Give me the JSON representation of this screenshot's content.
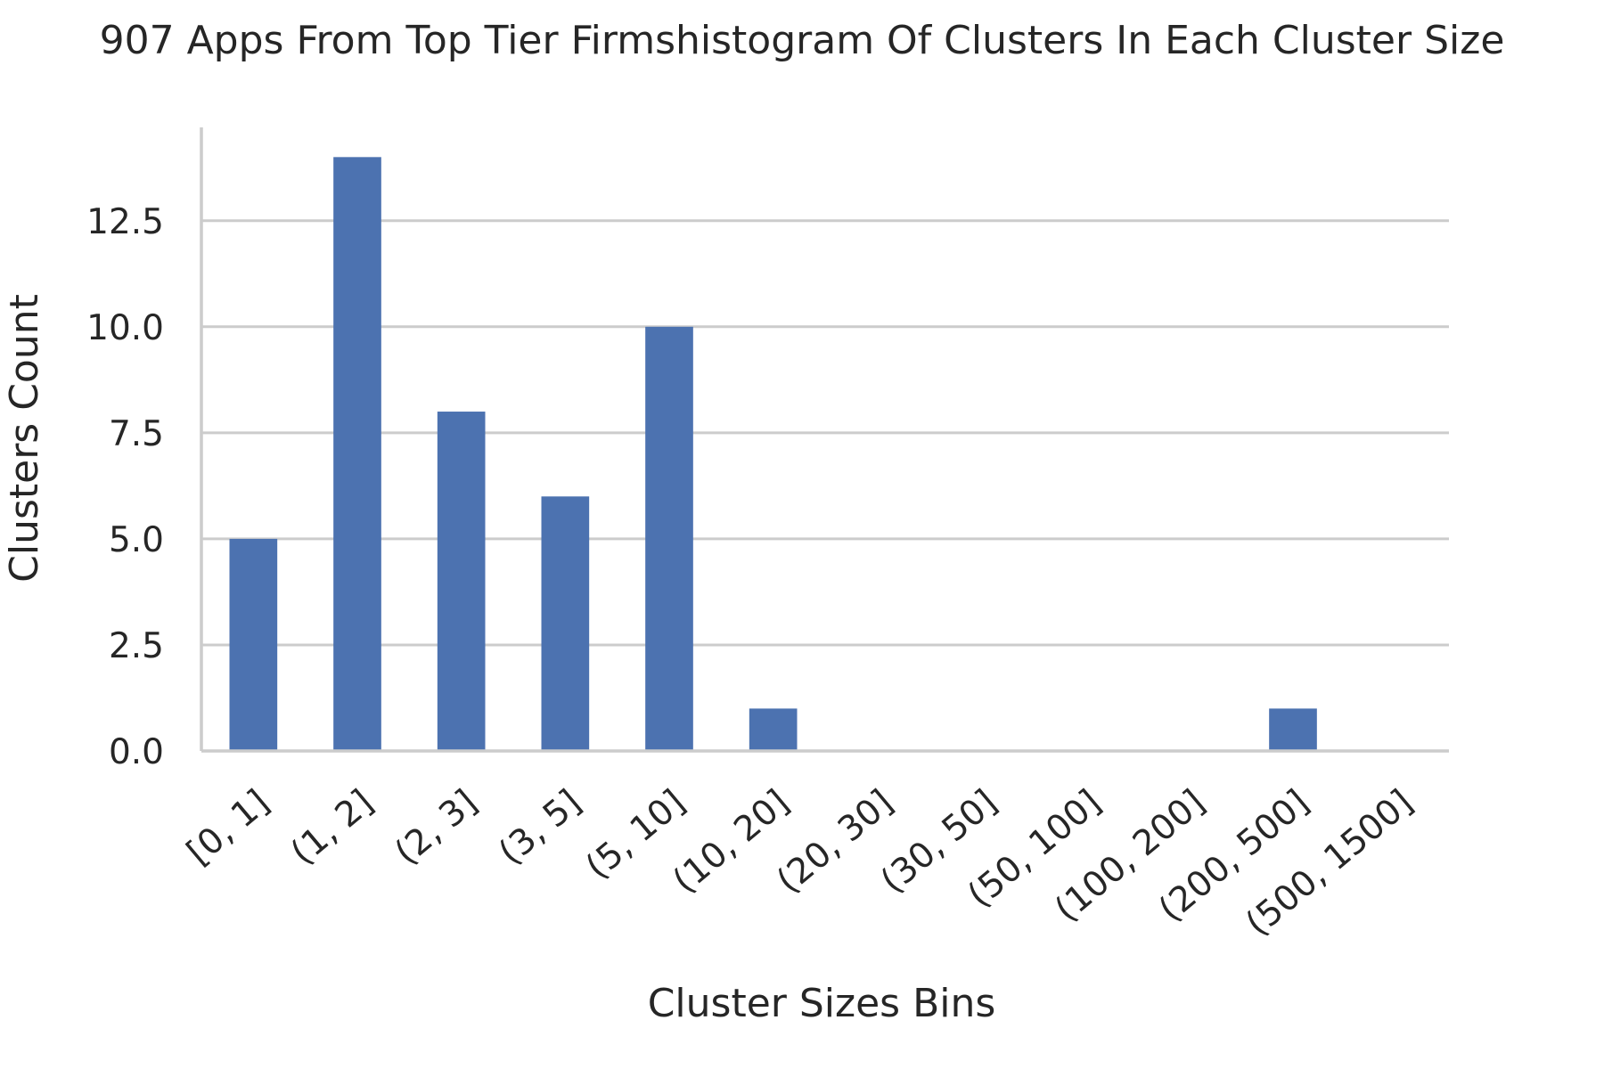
{
  "chart_data": {
    "type": "bar",
    "title": "907 Apps From Top Tier Firmshistogram Of Clusters In Each Cluster Size",
    "xlabel": "Cluster Sizes Bins",
    "ylabel": "Clusters Count",
    "categories": [
      "[0, 1]",
      "(1, 2]",
      "(2, 3]",
      "(3, 5]",
      "(5, 10]",
      "(10, 20]",
      "(20, 30]",
      "(30, 50]",
      "(50, 100]",
      "(100, 200]",
      "(200, 500]",
      "(500, 1500]"
    ],
    "values": [
      5,
      14,
      8,
      6,
      10,
      1,
      0,
      0,
      0,
      0,
      1,
      0
    ],
    "yticks": [
      "0.0",
      "2.5",
      "5.0",
      "7.5",
      "10.0",
      "12.5"
    ],
    "ylim": [
      0,
      14.7
    ],
    "grid": "y",
    "bar_color": "#4c72b0",
    "grid_color": "#cccccc",
    "text_color": "#262626"
  }
}
